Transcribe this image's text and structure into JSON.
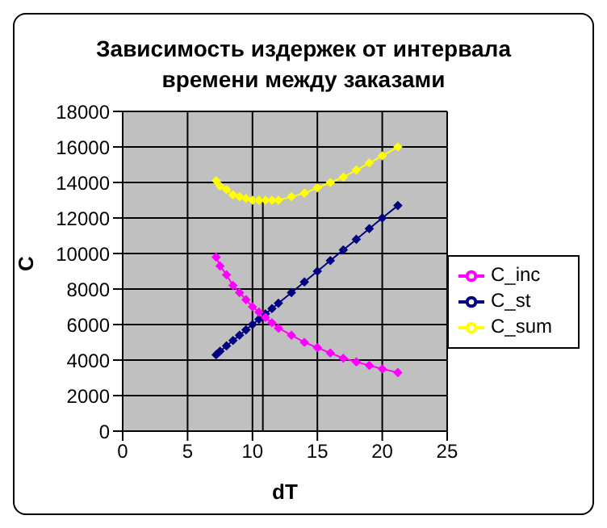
{
  "chart_data": {
    "type": "line",
    "title": "Зависимость издержек от интервала времени между заказами",
    "xlabel": "dT",
    "ylabel": "C",
    "x": [
      7.2,
      7.5,
      8,
      8.5,
      9,
      9.5,
      10,
      10.5,
      11,
      11.5,
      12,
      13,
      14,
      15,
      16,
      17,
      18,
      19,
      20,
      21.2
    ],
    "series": [
      {
        "name": "C_st",
        "color": "#000080",
        "values": [
          4300,
          4500,
          4800,
          5100,
          5400,
          5700,
          6000,
          6300,
          6600,
          6900,
          7200,
          7800,
          8400,
          9000,
          9600,
          10200,
          10800,
          11400,
          12000,
          12700
        ]
      },
      {
        "name": "C_inc",
        "color": "#ff00ff",
        "values": [
          9800,
          9300,
          8800,
          8200,
          7800,
          7400,
          7000,
          6700,
          6400,
          6100,
          5800,
          5400,
          5000,
          4700,
          4400,
          4100,
          3900,
          3700,
          3500,
          3300
        ]
      },
      {
        "name": "C_sum",
        "color": "#ffff00",
        "values": [
          14100,
          13800,
          13600,
          13300,
          13200,
          13100,
          13000,
          13000,
          13000,
          13000,
          13000,
          13200,
          13400,
          13700,
          14000,
          14300,
          14700,
          15100,
          15500,
          16000
        ]
      },
      {
        "type": "line",
        "color": "#000000",
        "marker": "none",
        "x": [
          10.8,
          10.8
        ],
        "values": [
          0,
          13100
        ]
      }
    ],
    "xlim": [
      0,
      25
    ],
    "xticks": [
      0,
      5,
      10,
      15,
      20,
      25
    ],
    "ylim": [
      0,
      18000
    ],
    "yticks": [
      0,
      2000,
      4000,
      6000,
      8000,
      10000,
      12000,
      14000,
      16000,
      18000
    ],
    "grid": true,
    "legend": "right",
    "marker": "diamond",
    "line_style": "solid"
  }
}
